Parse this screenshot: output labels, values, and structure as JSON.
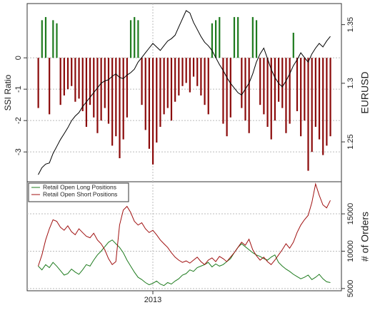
{
  "chart_data": [
    {
      "type": "bar",
      "ylabel": "SSI Ratio",
      "y2label": "EURUSD",
      "ylim": [
        -3.95,
        1.73
      ],
      "yticks": [
        0,
        -1,
        -2,
        -3
      ],
      "y2lim": [
        1.216,
        1.368
      ],
      "y2ticks": [
        1.25,
        1.3,
        1.35
      ],
      "xlim": [
        -3,
        82
      ],
      "xticks": [
        {
          "value": 31,
          "label": "2013"
        }
      ],
      "grid": true,
      "series": [
        {
          "color": "#1e7b1e",
          "negative_color": "#8b0a0a",
          "values": [
            -1.6,
            1.2,
            1.3,
            -1.8,
            1.2,
            1.1,
            -1.5,
            -1.2,
            -1.0,
            -0.9,
            -1.4,
            -1.3,
            -1.7,
            -2.2,
            -1.5,
            -1.9,
            -2.4,
            -2.0,
            -1.6,
            -2.1,
            -2.8,
            -2.5,
            -3.2,
            -2.6,
            -1.9,
            1.2,
            1.3,
            1.2,
            -1.5,
            -2.3,
            -2.9,
            -3.4,
            -2.7,
            -2.2,
            -1.8,
            -1.6,
            -2.0,
            -1.4,
            -1.2,
            -0.9,
            -0.8,
            -1.1,
            -0.6,
            -0.9,
            -1.2,
            -1.5,
            -1.8,
            1.1,
            1.2,
            1.3,
            -2.1,
            -2.5,
            -1.9,
            1.3,
            1.3,
            -1.6,
            -2.0,
            -2.4,
            1.3,
            1.2,
            -1.5,
            -1.8,
            -2.2,
            -2.6,
            -2.0,
            -1.4,
            -1.6,
            -2.4,
            -2.1,
            0.8,
            -1.7,
            -2.5,
            -2.0,
            -3.6,
            -3.0,
            -2.2,
            -2.6,
            -3.1,
            -2.8,
            -2.5
          ]
        },
        {
          "type": "line",
          "axis": "y2",
          "color": "#000000",
          "values": [
            1.222,
            1.228,
            1.231,
            1.232,
            1.24,
            1.246,
            1.252,
            1.257,
            1.262,
            1.268,
            1.272,
            1.275,
            1.28,
            1.284,
            1.288,
            1.292,
            1.296,
            1.3,
            1.302,
            1.303,
            1.306,
            1.308,
            1.305,
            1.304,
            1.307,
            1.309,
            1.312,
            1.318,
            1.322,
            1.326,
            1.33,
            1.334,
            1.331,
            1.328,
            1.332,
            1.336,
            1.338,
            1.341,
            1.348,
            1.355,
            1.362,
            1.36,
            1.352,
            1.346,
            1.34,
            1.335,
            1.332,
            1.328,
            1.322,
            1.316,
            1.311,
            1.305,
            1.3,
            1.296,
            1.292,
            1.29,
            1.295,
            1.3,
            1.308,
            1.318,
            1.325,
            1.33,
            1.321,
            1.312,
            1.305,
            1.3,
            1.297,
            1.302,
            1.308,
            1.315,
            1.32,
            1.326,
            1.322,
            1.318,
            1.325,
            1.33,
            1.334,
            1.331,
            1.336,
            1.34
          ]
        }
      ]
    },
    {
      "type": "line",
      "y2label": "# of Orders",
      "y2lim": [
        4700,
        19300
      ],
      "y2ticks": [
        5000,
        10000,
        15000
      ],
      "xlim": [
        -3,
        82
      ],
      "xticks": [
        {
          "value": 31,
          "label": "2013"
        }
      ],
      "grid": true,
      "legend": "top-left",
      "series": [
        {
          "name": "Retail Open Long Positions",
          "color": "#1e7b1e",
          "axis": "y2",
          "values": [
            8000,
            7500,
            8200,
            7800,
            8500,
            8000,
            7400,
            6800,
            7000,
            7600,
            7200,
            6900,
            7500,
            8200,
            8000,
            8800,
            9500,
            10000,
            10600,
            11200,
            11500,
            11000,
            10500,
            9800,
            8800,
            8000,
            7200,
            6500,
            6200,
            5800,
            5500,
            5700,
            6000,
            5600,
            5400,
            5800,
            5600,
            6000,
            6300,
            6800,
            7000,
            7500,
            7300,
            7800,
            8000,
            8200,
            8500,
            7900,
            8300,
            8000,
            8200,
            8600,
            9000,
            9800,
            10500,
            11000,
            10600,
            10200,
            9800,
            9500,
            9300,
            9000,
            8800,
            9200,
            9500,
            8500,
            8000,
            7600,
            7300,
            6900,
            6600,
            6300,
            6500,
            6800,
            6200,
            6500,
            6900,
            6300,
            5900,
            5800
          ]
        },
        {
          "name": "Retail Open Short Positions",
          "color": "#a01010",
          "axis": "y2",
          "values": [
            8000,
            9500,
            11500,
            13000,
            14200,
            14000,
            13200,
            12800,
            13400,
            12600,
            12200,
            13000,
            12500,
            12000,
            11800,
            12400,
            11500,
            11000,
            10200,
            9000,
            8200,
            8600,
            13500,
            15500,
            16000,
            15200,
            14000,
            13500,
            13800,
            13000,
            12500,
            12800,
            12200,
            11500,
            11000,
            10500,
            9800,
            9200,
            8800,
            8500,
            8700,
            8400,
            8800,
            9200,
            8600,
            8200,
            8800,
            9100,
            8600,
            9300,
            9000,
            8600,
            9200,
            9800,
            10500,
            11200,
            10800,
            11600,
            10200,
            9400,
            8800,
            9200,
            8600,
            8200,
            8800,
            9500,
            10200,
            11000,
            10400,
            11200,
            12500,
            13500,
            14200,
            14800,
            16500,
            19000,
            17500,
            16200,
            15800,
            16800
          ]
        }
      ]
    }
  ]
}
